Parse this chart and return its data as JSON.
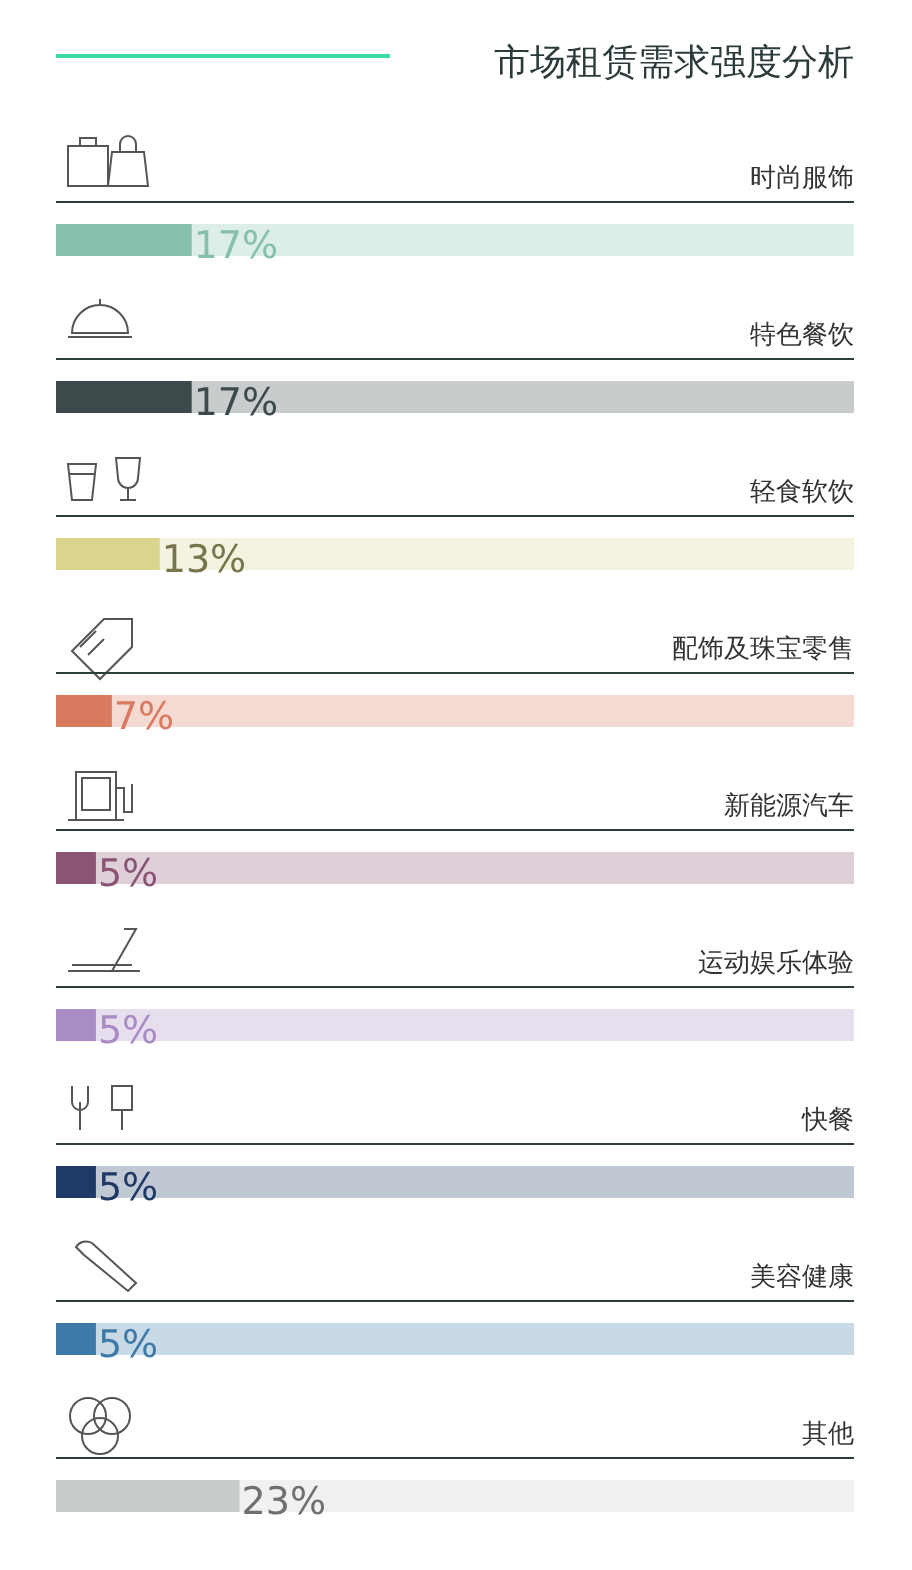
{
  "chart_data": {
    "type": "bar",
    "orientation": "horizontal",
    "title": "市场租赁需求强度分析",
    "categories": [
      "时尚服饰",
      "特色餐饮",
      "轻食软饮",
      "配饰及珠宝零售",
      "新能源汽车",
      "运动娱乐体验",
      "快餐",
      "美容健康",
      "其他"
    ],
    "values": [
      17,
      17,
      13,
      7,
      5,
      5,
      5,
      5,
      23
    ],
    "colors": [
      "#85bfae",
      "#3d4a4c",
      "#d9d58e",
      "#d97a5f",
      "#8a5574",
      "#a98cc4",
      "#1f3a66",
      "#3d7aa8",
      "#c8cccb"
    ],
    "value_labels": [
      "17%",
      "17%",
      "13%",
      "7%",
      "5%",
      "5%",
      "5%",
      "5%",
      "23%"
    ],
    "xlim": [
      0,
      100
    ]
  }
}
